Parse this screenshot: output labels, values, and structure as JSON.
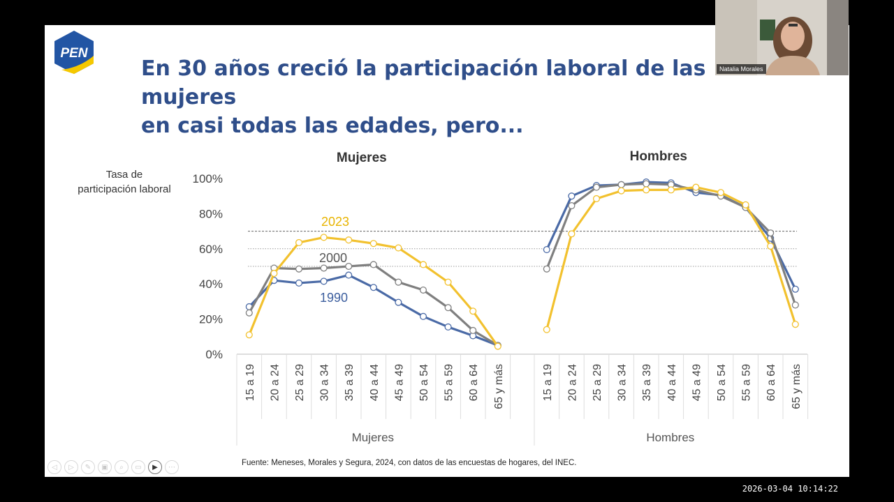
{
  "slide": {
    "logo_text": "PEN",
    "title_line1": "En 30 años creció la participación laboral de las mujeres",
    "title_line2": "en casi todas las edades, pero...",
    "source": "Fuente: Meneses, Morales y Segura, 2024, con datos de las encuestas de hogares, del INEC."
  },
  "chart_data": {
    "type": "line",
    "ylabel": [
      "Tasa de",
      "participación laboral"
    ],
    "ylim": [
      0,
      100
    ],
    "yticks": [
      "0%",
      "20%",
      "40%",
      "60%",
      "80%",
      "100%"
    ],
    "reference_lines": [
      50,
      60,
      70
    ],
    "panels": [
      {
        "title": "Mujeres",
        "group_label": "Mujeres",
        "categories": [
          "15 a 19",
          "20 a 24",
          "25 a 29",
          "30 a 34",
          "35 a 39",
          "40 a 44",
          "45 a 49",
          "50 a 54",
          "55 a 59",
          "60 a 64",
          "65 y más"
        ],
        "series": [
          {
            "name": "1990",
            "color": "#4a6aa6",
            "values": [
              27,
              42,
              40.5,
              41.5,
              45,
              38,
              29.5,
              21.5,
              15.5,
              10.5,
              5
            ]
          },
          {
            "name": "2000",
            "color": "#7f7f7f",
            "values": [
              23.5,
              49,
              48.5,
              49,
              50,
              51,
              41,
              36.5,
              26.5,
              13.5,
              5
            ]
          },
          {
            "name": "2023",
            "color": "#f2c12e",
            "values": [
              11,
              46,
              63.5,
              66.5,
              65,
              63,
              60.5,
              51,
              41,
              24.5,
              4.5
            ]
          }
        ]
      },
      {
        "title": "Hombres",
        "group_label": "Hombres",
        "categories": [
          "15 a 19",
          "20 a 24",
          "25 a 29",
          "30 a 34",
          "35 a 39",
          "40 a 44",
          "45 a 49",
          "50 a 54",
          "55 a 59",
          "60 a 64",
          "65 y más"
        ],
        "series": [
          {
            "name": "1990",
            "color": "#4a6aa6",
            "values": [
              59.5,
              90,
              96,
              96.5,
              98,
              97.5,
              92,
              90.5,
              83.5,
              66,
              37
            ]
          },
          {
            "name": "2000",
            "color": "#7f7f7f",
            "values": [
              48.5,
              84.5,
              95,
              96.5,
              97,
              96.5,
              93.5,
              90,
              83.5,
              69,
              28
            ]
          },
          {
            "name": "2023",
            "color": "#f2c12e",
            "values": [
              14,
              68.5,
              88.5,
              93,
              93.5,
              93.5,
              95,
              92,
              85,
              61.5,
              17
            ]
          }
        ]
      }
    ]
  },
  "toolbar": [
    "◁",
    "▷",
    "✎",
    "▣",
    "⌕",
    "▭",
    "▶",
    "⋯"
  ],
  "webcam": {
    "name": "Natalia Morales"
  },
  "timestamp": "2026-03-04  10:14:22"
}
